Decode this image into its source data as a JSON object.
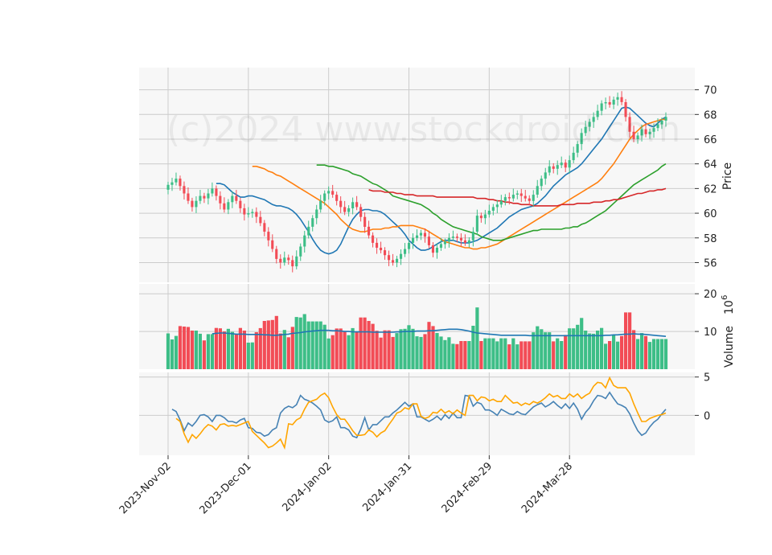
{
  "watermark": "(c)2024 www.stockdroid.com",
  "colors": {
    "up": "#3dbe87",
    "down": "#f24c56",
    "ma_short": "#1f77b4",
    "ma_mid": "#ff7f0e",
    "ma_long": "#2ca02c",
    "ma_xlong": "#d62728",
    "volume_ma": "#1f77b4",
    "osc_a": "#4682b4",
    "osc_b": "#ffa500",
    "panel_bg": "#f7f7f7",
    "grid": "#cccccc"
  },
  "chart_data": {
    "type": "candlestick",
    "x_tick_labels": [
      "2023-Nov-02",
      "2023-Dec-01",
      "2024-Jan-02",
      "2024-Jan-31",
      "2024-Feb-29",
      "2024-Mar-28"
    ],
    "x_tick_index": [
      0,
      20,
      40,
      60,
      80,
      100
    ],
    "price_panel": {
      "ylabel": "Price",
      "yticks": [
        56,
        58,
        60,
        62,
        64,
        66,
        68,
        70
      ],
      "ylim": [
        54.4,
        71.8
      ],
      "close": [
        62.3,
        62.5,
        62.8,
        62.2,
        61.6,
        61.0,
        60.5,
        61.0,
        61.4,
        61.2,
        61.6,
        62.0,
        61.4,
        60.8,
        60.3,
        60.9,
        61.4,
        61.0,
        60.4,
        59.9,
        60.0,
        60.1,
        59.7,
        59.2,
        58.5,
        57.8,
        57.1,
        56.3,
        56.0,
        56.4,
        56.2,
        55.7,
        56.5,
        57.3,
        58.2,
        58.9,
        59.6,
        60.3,
        61.0,
        61.6,
        61.8,
        61.5,
        61.0,
        60.5,
        60.1,
        60.4,
        60.9,
        60.5,
        59.7,
        58.9,
        58.2,
        57.6,
        57.2,
        57.0,
        56.6,
        56.2,
        56.0,
        56.3,
        56.7,
        57.1,
        57.6,
        58.0,
        58.2,
        58.4,
        58.1,
        57.4,
        56.8,
        57.2,
        57.5,
        57.7,
        58.0,
        58.1,
        58.0,
        57.8,
        57.6,
        57.8,
        58.5,
        59.8,
        59.6,
        59.9,
        60.2,
        60.5,
        60.7,
        61.0,
        61.3,
        61.2,
        61.5,
        61.6,
        61.4,
        61.2,
        61.0,
        61.5,
        62.2,
        62.8,
        63.3,
        63.8,
        63.6,
        63.9,
        64.1,
        63.7,
        64.3,
        64.9,
        65.6,
        66.5,
        67.0,
        67.4,
        67.8,
        68.3,
        68.9,
        69.0,
        68.8,
        69.2,
        69.4,
        69.0,
        67.8,
        66.6,
        66.0,
        66.3,
        66.8,
        66.4,
        66.6,
        66.9,
        67.2,
        67.5,
        67.8
      ],
      "moving_averages": [
        {
          "color_key": "ma_short",
          "values": [
            62.4,
            62.4,
            62.3,
            62.0,
            61.7,
            61.5,
            61.3,
            61.3,
            61.4,
            61.4,
            61.3,
            61.2,
            61.1,
            60.9,
            60.7,
            60.6,
            60.6,
            60.5,
            60.4,
            60.2,
            59.9,
            59.5,
            59.0,
            58.5,
            57.9,
            57.4,
            57.0,
            56.8,
            56.7,
            56.8,
            57.0,
            57.5,
            58.2,
            58.9,
            59.5,
            59.9,
            60.2,
            60.3,
            60.3,
            60.2,
            60.2,
            60.1,
            59.9,
            59.6,
            59.3,
            59.0,
            58.7,
            58.3,
            57.8,
            57.5,
            57.2,
            57.0,
            57.0,
            57.1,
            57.3,
            57.5,
            57.7,
            57.8,
            57.8,
            57.8,
            57.7,
            57.6,
            57.6,
            57.6,
            57.7,
            57.8,
            58.0,
            58.2,
            58.4,
            58.6,
            58.8,
            59.1,
            59.4,
            59.7,
            59.9,
            60.1,
            60.3,
            60.4,
            60.5,
            60.6,
            60.8,
            61.1,
            61.4,
            61.8,
            62.2,
            62.5,
            62.8,
            63.1,
            63.3,
            63.5,
            63.7,
            64.0,
            64.4,
            64.8,
            65.2,
            65.6,
            66.0,
            66.5,
            67.0,
            67.5,
            68.0,
            68.5,
            68.6,
            68.5,
            68.2,
            67.9,
            67.6,
            67.3,
            67.1,
            67.0,
            67.3,
            67.6,
            67.8
          ]
        },
        {
          "color_key": "ma_mid",
          "values": [
            63.8,
            63.8,
            63.7,
            63.6,
            63.4,
            63.3,
            63.1,
            63.0,
            62.8,
            62.6,
            62.4,
            62.2,
            62.0,
            61.8,
            61.6,
            61.4,
            61.2,
            61.0,
            60.8,
            60.5,
            60.2,
            59.9,
            59.5,
            59.2,
            58.9,
            58.7,
            58.6,
            58.5,
            58.5,
            58.6,
            58.7,
            58.7,
            58.7,
            58.8,
            58.8,
            58.9,
            58.9,
            59.0,
            59.0,
            59.0,
            59.0,
            58.9,
            58.8,
            58.7,
            58.5,
            58.3,
            58.1,
            57.9,
            57.7,
            57.6,
            57.5,
            57.4,
            57.3,
            57.2,
            57.2,
            57.1,
            57.1,
            57.2,
            57.2,
            57.3,
            57.4,
            57.5,
            57.7,
            57.9,
            58.1,
            58.3,
            58.5,
            58.7,
            58.9,
            59.1,
            59.3,
            59.5,
            59.7,
            59.9,
            60.1,
            60.3,
            60.5,
            60.7,
            60.9,
            61.1,
            61.3,
            61.5,
            61.7,
            61.9,
            62.1,
            62.3,
            62.5,
            62.8,
            63.2,
            63.6,
            64.0,
            64.5,
            65.0,
            65.5,
            66.0,
            66.4,
            66.7,
            67.0,
            67.2,
            67.3,
            67.4,
            67.5,
            67.6,
            67.6
          ]
        },
        {
          "color_key": "ma_long",
          "values": [
            63.9,
            63.9,
            63.9,
            63.8,
            63.8,
            63.7,
            63.6,
            63.5,
            63.4,
            63.2,
            63.1,
            63.0,
            62.8,
            62.6,
            62.4,
            62.3,
            62.1,
            61.9,
            61.7,
            61.4,
            61.3,
            61.2,
            61.1,
            61.0,
            60.9,
            60.8,
            60.7,
            60.5,
            60.3,
            60.0,
            59.8,
            59.5,
            59.3,
            59.1,
            58.9,
            58.8,
            58.7,
            58.6,
            58.5,
            58.4,
            58.3,
            58.1,
            58.0,
            57.9,
            57.8,
            57.8,
            57.8,
            57.9,
            58.0,
            58.1,
            58.2,
            58.3,
            58.4,
            58.5,
            58.6,
            58.6,
            58.7,
            58.7,
            58.7,
            58.7,
            58.7,
            58.7,
            58.8,
            58.8,
            58.9,
            58.9,
            59.1,
            59.2,
            59.4,
            59.6,
            59.8,
            60.0,
            60.2,
            60.5,
            60.8,
            61.1,
            61.4,
            61.7,
            62.0,
            62.3,
            62.5,
            62.7,
            62.9,
            63.1,
            63.3,
            63.5,
            63.8,
            64.0
          ]
        },
        {
          "color_key": "ma_xlong",
          "values": [
            61.9,
            61.8,
            61.8,
            61.8,
            61.7,
            61.7,
            61.7,
            61.6,
            61.6,
            61.5,
            61.5,
            61.5,
            61.4,
            61.4,
            61.4,
            61.4,
            61.4,
            61.3,
            61.3,
            61.3,
            61.3,
            61.3,
            61.3,
            61.3,
            61.3,
            61.3,
            61.3,
            61.2,
            61.2,
            61.2,
            61.1,
            61.1,
            61.0,
            61.0,
            60.9,
            60.9,
            60.8,
            60.8,
            60.7,
            60.7,
            60.7,
            60.6,
            60.6,
            60.6,
            60.6,
            60.6,
            60.6,
            60.6,
            60.7,
            60.7,
            60.7,
            60.7,
            60.8,
            60.8,
            60.8,
            60.8,
            60.9,
            60.9,
            60.9,
            61.0,
            61.0,
            61.1,
            61.1,
            61.2,
            61.3,
            61.4,
            61.5,
            61.6,
            61.6,
            61.7,
            61.8,
            61.8,
            61.9,
            61.9,
            62.0
          ]
        }
      ]
    },
    "volume_panel": {
      "ylabel": "Volume",
      "multiplier_label": "10",
      "multiplier_exponent": "6",
      "yticks": [
        10,
        20
      ],
      "ylim": [
        0,
        22.6
      ],
      "ma_color_key": "volume_ma",
      "ma": [
        9.4,
        9.5,
        9.6,
        9.6,
        9.5,
        9.4,
        9.3,
        9.3,
        9.3,
        9.2,
        9.2,
        9.2,
        9.2,
        9.1,
        9.1,
        9.0,
        9.0,
        9.1,
        9.2,
        9.3,
        9.5,
        9.6,
        9.7,
        9.9,
        10.0,
        10.1,
        10.2,
        10.3,
        10.3,
        10.3,
        10.2,
        10.2,
        10.1,
        10.0,
        10.0,
        9.9,
        9.9,
        9.9,
        9.9,
        9.9,
        9.8,
        9.8,
        9.8,
        9.8,
        9.8,
        9.8,
        9.9,
        9.9,
        10.0,
        10.0,
        10.0,
        10.1,
        10.1,
        10.1,
        10.2,
        10.2,
        10.3,
        10.4,
        10.5,
        10.6,
        10.6,
        10.6,
        10.5,
        10.3,
        10.1,
        9.8,
        9.6,
        9.5,
        9.4,
        9.3,
        9.2,
        9.1,
        9.0,
        9.0,
        9.0,
        9.0,
        9.0,
        9.0,
        9.0,
        8.9,
        8.9,
        8.9,
        8.9,
        8.9,
        8.9,
        8.9,
        8.9,
        8.9,
        8.9,
        8.9,
        8.9,
        8.9,
        8.9,
        8.9,
        8.9,
        8.9,
        8.9,
        8.9,
        9.0,
        9.0,
        9.1,
        9.1,
        9.2,
        9.3,
        9.3,
        9.4,
        9.3,
        9.3,
        9.2,
        9.1,
        9.0,
        8.9,
        8.8,
        8.7
      ]
    },
    "oscillator_panel": {
      "yticks": [
        0,
        5
      ],
      "ylim": [
        -5.2,
        5.6
      ],
      "series": [
        {
          "color_key": "osc_a",
          "values": [
            0.8,
            0.5,
            -0.6,
            -2.0,
            -1.0,
            -1.4,
            -0.8,
            0.0,
            0.1,
            -0.2,
            -0.8,
            0.0,
            0.0,
            -0.3,
            -0.8,
            -0.8,
            -1.0,
            -0.6,
            -0.4,
            -1.6,
            -1.7,
            -2.2,
            -2.3,
            -2.7,
            -2.5,
            -1.9,
            -1.6,
            0.3,
            0.9,
            1.2,
            1.0,
            1.4,
            2.6,
            2.1,
            1.9,
            1.6,
            1.2,
            0.7,
            -0.6,
            -0.9,
            -0.7,
            -0.2,
            -1.6,
            -1.6,
            -1.9,
            -2.7,
            -2.9,
            -1.8,
            -0.3,
            -1.9,
            -1.2,
            -1.2,
            -0.7,
            -0.2,
            -0.2,
            0.3,
            0.7,
            1.2,
            1.7,
            1.2,
            1.5,
            -0.2,
            -0.2,
            -0.5,
            -0.8,
            -0.5,
            -0.1,
            -0.6,
            0.1,
            -0.4,
            0.3,
            -0.3,
            -0.3,
            2.6,
            2.5,
            1.2,
            1.7,
            1.5,
            0.7,
            0.7,
            0.4,
            0.0,
            0.8,
            0.5,
            0.2,
            0.1,
            0.5,
            0.2,
            0.1,
            0.6,
            1.1,
            1.4,
            1.6,
            1.1,
            1.4,
            1.8,
            1.3,
            0.9,
            1.5,
            0.9,
            1.6,
            0.8,
            -0.5,
            0.4,
            1.0,
            1.9,
            2.6,
            2.5,
            2.2,
            3.0,
            2.2,
            1.5,
            1.3,
            1.0,
            0.2,
            -1.0,
            -2.0,
            -2.6,
            -2.3,
            -1.5,
            -0.9,
            -0.5,
            0.2,
            0.8
          ]
        },
        {
          "color_key": "osc_b",
          "values": [
            -0.4,
            -0.8,
            -2.4,
            -3.5,
            -2.5,
            -3.0,
            -2.4,
            -1.7,
            -1.2,
            -1.4,
            -1.9,
            -1.2,
            -1.1,
            -1.4,
            -1.3,
            -1.4,
            -1.2,
            -1.0,
            -0.8,
            -2.1,
            -2.6,
            -3.1,
            -3.6,
            -4.2,
            -4.0,
            -3.6,
            -3.1,
            -4.2,
            -1.1,
            -1.2,
            -0.6,
            -0.3,
            0.8,
            1.7,
            1.9,
            2.1,
            2.6,
            2.9,
            2.3,
            1.1,
            0.1,
            -0.5,
            -0.5,
            -1.2,
            -2.0,
            -2.6,
            -2.6,
            -2.5,
            -1.9,
            -2.2,
            -2.8,
            -2.3,
            -2.0,
            -1.2,
            -0.5,
            0.3,
            0.5,
            1.0,
            0.8,
            1.5,
            1.5,
            -0.1,
            -0.4,
            -0.2,
            0.4,
            0.3,
            0.8,
            0.3,
            0.6,
            0.2,
            0.7,
            0.3,
            0.0,
            2.6,
            2.6,
            1.9,
            2.4,
            2.3,
            1.9,
            2.1,
            1.8,
            1.8,
            2.6,
            2.1,
            1.6,
            1.7,
            1.3,
            1.6,
            1.4,
            1.8,
            1.6,
            1.9,
            2.3,
            2.8,
            2.4,
            2.6,
            2.2,
            2.2,
            2.8,
            2.4,
            2.8,
            2.2,
            2.6,
            2.9,
            3.8,
            4.3,
            4.2,
            3.6,
            4.9,
            3.9,
            3.6,
            3.6,
            3.6,
            2.9,
            1.5,
            0.3,
            -0.8,
            -0.8,
            -0.4,
            -0.2,
            0.0,
            0.1,
            0.3
          ]
        }
      ]
    }
  }
}
